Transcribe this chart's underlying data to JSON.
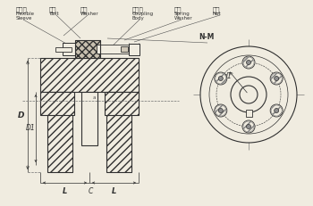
{
  "bg_color": "#f0ece0",
  "line_color": "#303030",
  "labels_cn": [
    "弹性套",
    "柱销",
    "垫圈",
    "联轴节",
    "弹垫",
    "螺母"
  ],
  "labels_en": [
    "Flexible\nSleeve",
    "Bolt",
    "Washer",
    "Coupling\nBody",
    "Spring\nWasher",
    "Nut"
  ],
  "dim_D": "D",
  "dim_D1": "D1",
  "dim_L": "L",
  "dim_C": "C",
  "dim_d1": "d1",
  "dim_NM": "N-M"
}
